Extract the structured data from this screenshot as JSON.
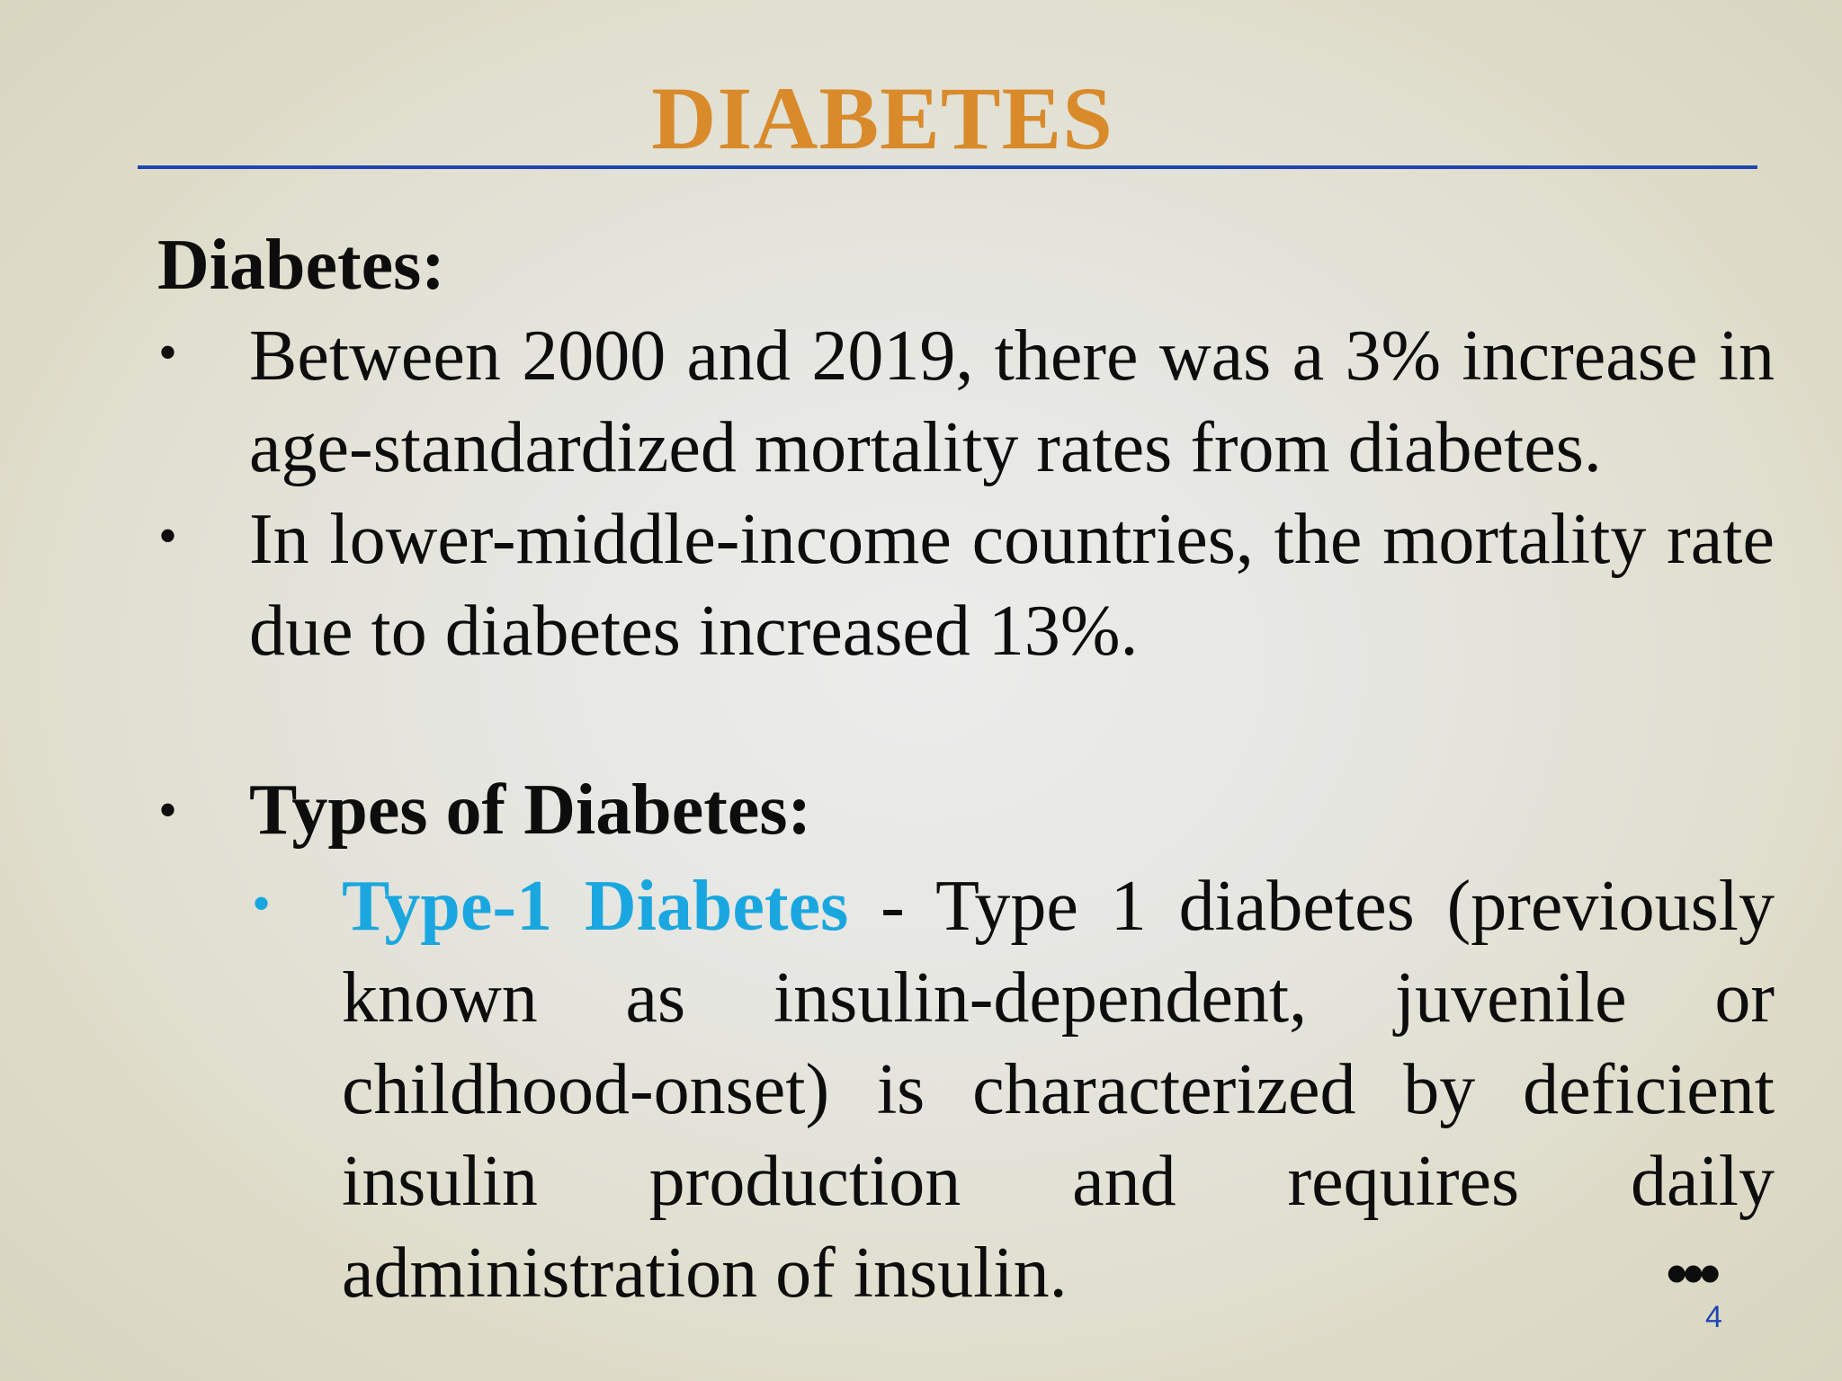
{
  "slide": {
    "title": "DIABETES",
    "page_number": "4",
    "continue_marker": "•••",
    "colors": {
      "title": "#d98b2b",
      "rule": "#1f45b3",
      "accent": "#1aa7e0",
      "text": "#0d0d0d",
      "page_number": "#1f45b3"
    }
  },
  "section": {
    "heading": "Diabetes:",
    "bullet_glyph": "•",
    "bullets": [
      "Between 2000 and 2019, there was a 3% increase in age-standardized mortality rates from diabetes.",
      "In lower-middle-income countries, the mortality rate due to diabetes increased 13%."
    ]
  },
  "types": {
    "heading": "Types of Diabetes:",
    "items": [
      {
        "label": "Type-1 Diabetes",
        "description": " - Type 1 diabetes (previously known as insulin-dependent, juvenile or childhood-onset) is characterized by deficient insulin production and requires daily administration of insulin."
      }
    ]
  }
}
